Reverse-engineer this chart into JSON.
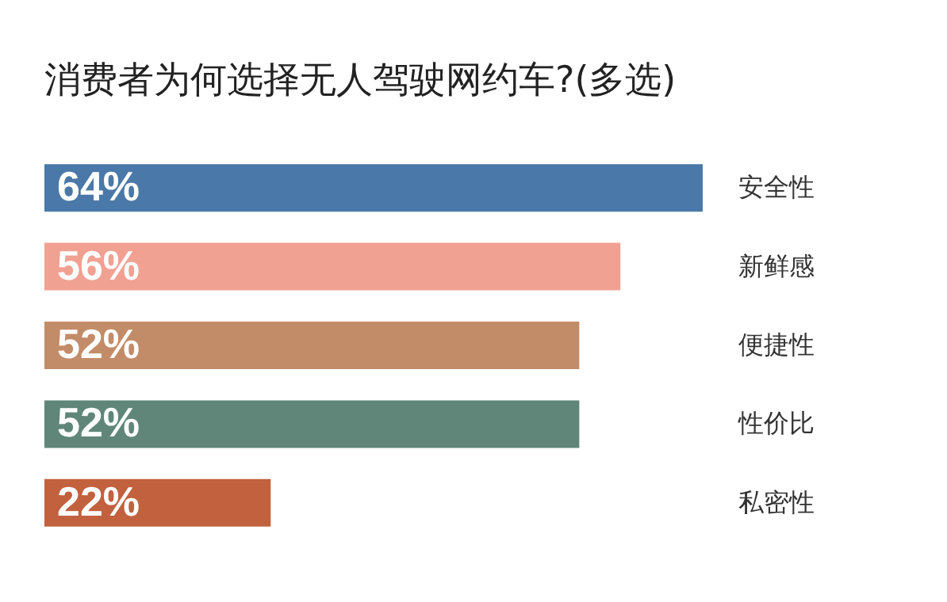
{
  "chart_data": {
    "type": "bar",
    "orientation": "horizontal",
    "title": "消费者为何选择无人驾驶网约车?(多选)",
    "categories": [
      "安全性",
      "新鲜感",
      "便捷性",
      "性价比",
      "私密性"
    ],
    "values": [
      64,
      56,
      52,
      52,
      22
    ],
    "value_labels": [
      "64%",
      "56%",
      "52%",
      "52%",
      "22%"
    ],
    "colors": [
      "#4a78a8",
      "#f1a192",
      "#c38c68",
      "#5f8679",
      "#c2613e"
    ],
    "tick_labels": "y"
  }
}
